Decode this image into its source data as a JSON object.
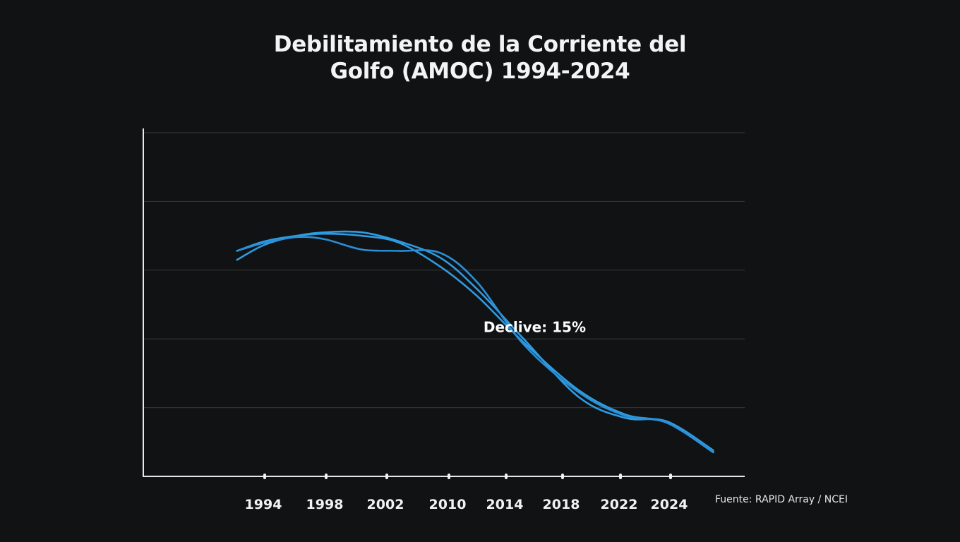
{
  "chart_data": {
    "type": "line",
    "title_lines": [
      "Debilitamiento de la Corriente del",
      "Golfo (AMOC) 1994-2024"
    ],
    "xlabel": "",
    "ylabel": "",
    "categories": [
      "1994",
      "1998",
      "2002",
      "2010",
      "2014",
      "2018",
      "2022",
      "2024"
    ],
    "ylim": [
      0,
      5
    ],
    "grid": true,
    "y_gridlines": [
      1,
      2,
      3,
      4,
      5
    ],
    "x_domain": [
      0,
      10
    ],
    "series": [
      {
        "name": "serie-1",
        "color": "#2f9be0",
        "x": [
          -0.6,
          0.0,
          0.7,
          1.3,
          2.1,
          2.9,
          3.8,
          4.6,
          5.6,
          6.8,
          7.8,
          8.7,
          9.7
        ],
        "y": [
          3.28,
          3.42,
          3.5,
          3.53,
          3.5,
          3.4,
          3.05,
          2.62,
          1.95,
          1.25,
          0.9,
          0.78,
          0.35
        ]
      },
      {
        "name": "serie-2",
        "color": "#2f9be0",
        "x": [
          -0.6,
          0.0,
          0.7,
          1.3,
          2.1,
          2.9,
          3.8,
          4.6,
          5.6,
          6.8,
          7.8,
          8.7,
          9.7
        ],
        "y": [
          3.15,
          3.37,
          3.5,
          3.55,
          3.55,
          3.42,
          3.18,
          2.72,
          2.0,
          1.15,
          0.85,
          0.8,
          0.38
        ]
      },
      {
        "name": "serie-3",
        "color": "#2a8fd6",
        "x": [
          -0.6,
          0.0,
          0.7,
          1.3,
          2.1,
          2.9,
          3.8,
          4.6,
          5.6,
          6.8,
          7.8,
          8.7,
          9.7
        ],
        "y": [
          3.28,
          3.4,
          3.48,
          3.45,
          3.3,
          3.28,
          3.25,
          2.82,
          1.92,
          1.22,
          0.88,
          0.78,
          0.36
        ]
      }
    ],
    "annotations": [
      {
        "text": "Declive: 15%",
        "x": 4.7,
        "y": 2.18
      }
    ],
    "source": "Fuente: RAPID Array / NCEI",
    "colors": {
      "background": "#111214",
      "line": "#2f9be0",
      "grid": "#3a3a3d",
      "axis": "#e8e8e8"
    }
  }
}
